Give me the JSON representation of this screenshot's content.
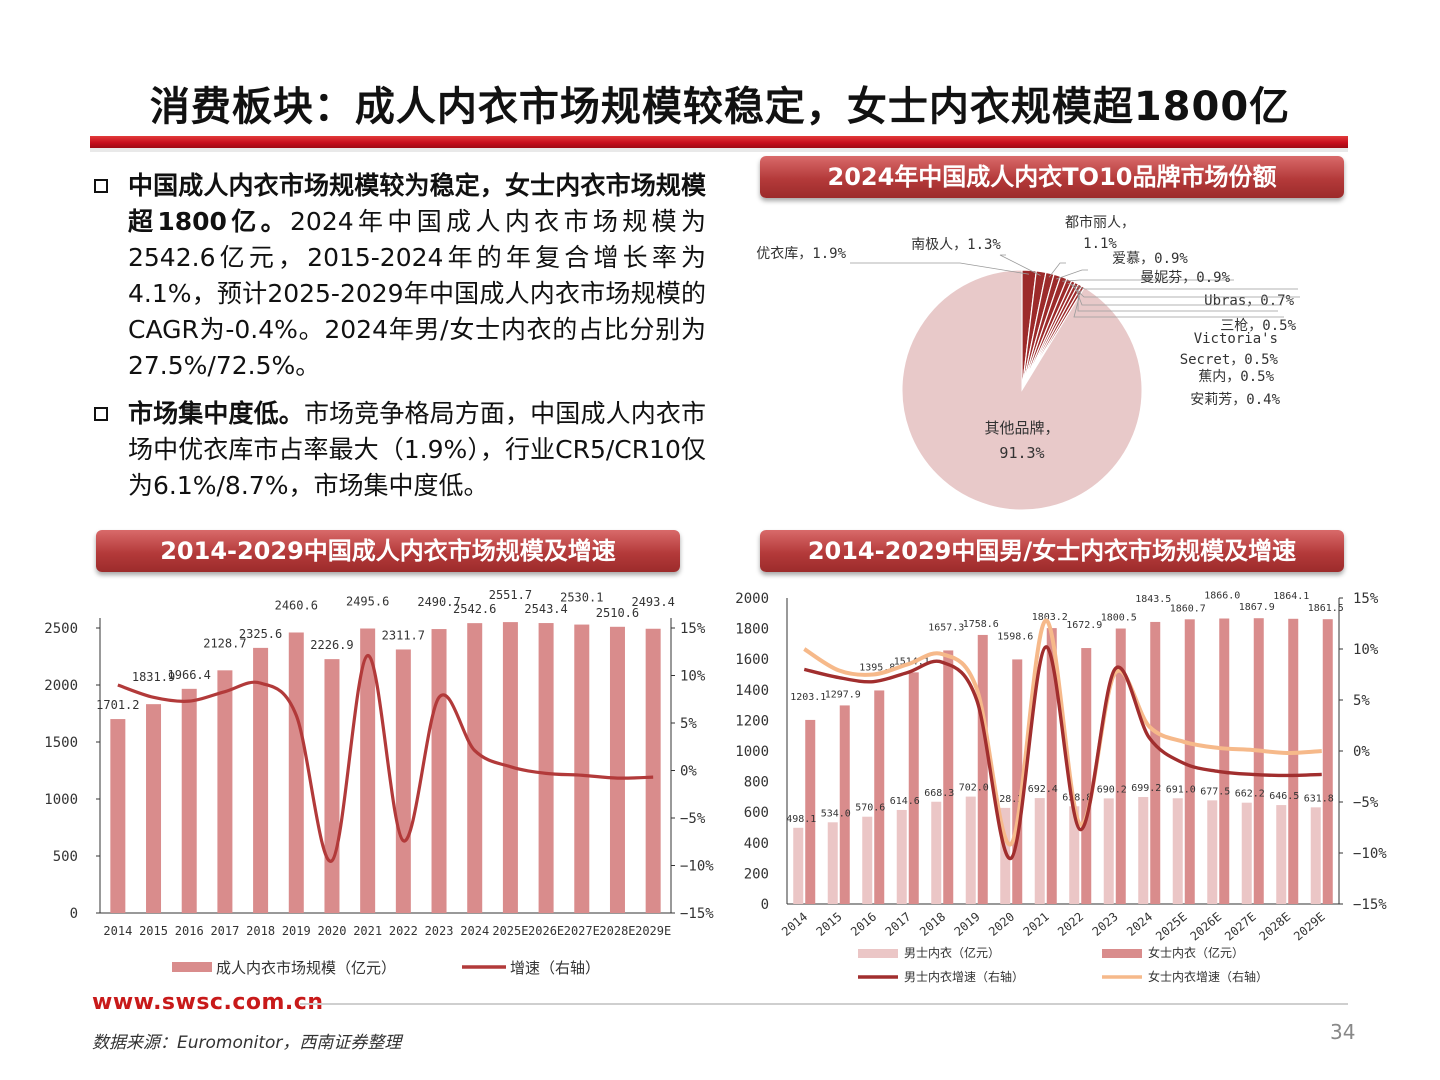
{
  "page": {
    "title": "消费板块：成人内衣市场规模较稳定，女士内衣规模超1800亿",
    "url": "www.swsc.com.cn",
    "source": "数据来源：Euromonitor，西南证券整理",
    "page_number": "34"
  },
  "bullets": [
    {
      "bold": "中国成人内衣市场规模较为稳定，女士内衣市场规模超1800亿。",
      "text": "2024年中国成人内衣市场规模为2542.6亿元，2015-2024年的年复合增长率为4.1%，预计2025-2029年中国成人内衣市场规模的CAGR为-0.4%。2024年男/女士内衣的占比分别为27.5%/72.5%。"
    },
    {
      "bold": "市场集中度低。",
      "text": "市场竞争格局方面，中国成人内衣市场中优衣库市占率最大（1.9%），行业CR5/CR10仅为6.1%/8.7%，市场集中度低。"
    }
  ],
  "colors": {
    "accent": "#c8101e",
    "bar_total": "#d98c8c",
    "line_total": "#b23a3a",
    "bar_male": "#ebc6c6",
    "bar_female": "#d98c8c",
    "line_male": "#a12e2e",
    "line_female": "#f6b98a",
    "pie_other": "#e8c9c9",
    "pie_brand": "#9c2a2a"
  },
  "chart_data": [
    {
      "id": "pie",
      "type": "pie",
      "title": "2024年中国成人内衣TO10品牌市场份额",
      "slices": [
        {
          "name": "优衣库",
          "value": 1.9,
          "label": "优衣库，1.9%"
        },
        {
          "name": "南极人",
          "value": 1.3,
          "label": "南极人，1.3%"
        },
        {
          "name": "都市丽人",
          "value": 1.1,
          "label_lines": [
            "都市丽人，",
            "1.1%"
          ]
        },
        {
          "name": "爱慕",
          "value": 0.9,
          "label": "爱慕，0.9%"
        },
        {
          "name": "曼妮芬",
          "value": 0.9,
          "label": "曼妮芬，0.9%"
        },
        {
          "name": "Ubras",
          "value": 0.7,
          "label": "Ubras，0.7%"
        },
        {
          "name": "三枪",
          "value": 0.5,
          "label": "三枪，0.5%"
        },
        {
          "name": "Victoria's Secret",
          "value": 0.5,
          "label_lines": [
            "Victoria's",
            "Secret，0.5%"
          ]
        },
        {
          "name": "蕉内",
          "value": 0.5,
          "label": "蕉内，0.5%"
        },
        {
          "name": "安莉芳",
          "value": 0.4,
          "label": "安莉芳，0.4%"
        },
        {
          "name": "其他品牌",
          "value": 91.3,
          "label_lines": [
            "其他品牌，",
            "91.3%"
          ]
        }
      ]
    },
    {
      "id": "total",
      "type": "bar",
      "title": "2014-2029中国成人内衣市场规模及增速",
      "categories": [
        "2014",
        "2015",
        "2016",
        "2017",
        "2018",
        "2019",
        "2020",
        "2021",
        "2022",
        "2023",
        "2024",
        "2025E",
        "2026E",
        "2027E",
        "2028E",
        "2029E"
      ],
      "bar_values": [
        1701.2,
        1831.9,
        1966.4,
        2128.7,
        2325.6,
        2460.6,
        2226.9,
        2495.6,
        2311.7,
        2490.7,
        2542.6,
        2551.7,
        2543.4,
        2530.1,
        2510.6,
        2493.4
      ],
      "bar_labels": [
        "1701.2",
        "1831.9",
        "1966.4",
        "2128.7",
        "2325.6",
        "2460.6",
        "2226.9",
        "2495.6",
        "2311.7",
        "2490.7",
        "2542.6",
        "2551.7",
        "2543.4",
        "2530.1",
        "2510.6",
        "2493.4"
      ],
      "growth_values": [
        9.0,
        7.7,
        7.3,
        8.3,
        9.2,
        5.8,
        -9.5,
        12.1,
        -7.4,
        7.7,
        2.1,
        0.4,
        -0.3,
        -0.5,
        -0.8,
        -0.7
      ],
      "y_left": {
        "min": 0,
        "max": 2500,
        "ticks": [
          "0",
          "500",
          "1000",
          "1500",
          "2000",
          "2500"
        ]
      },
      "y_right": {
        "min": -15,
        "max": 15,
        "ticks": [
          "−15%",
          "−10%",
          "−5%",
          "0%",
          "5%",
          "10%",
          "15%"
        ]
      },
      "legend": [
        {
          "label": "成人内衣市场规模（亿元）",
          "kind": "bar"
        },
        {
          "label": "增速（右轴）",
          "kind": "line"
        }
      ]
    },
    {
      "id": "gender",
      "type": "bar",
      "title": "2014-2029中国男/女士内衣市场规模及增速",
      "categories": [
        "2014",
        "2015",
        "2016",
        "2017",
        "2018",
        "2019",
        "2020",
        "2021",
        "2022",
        "2023",
        "2024",
        "2025E",
        "2026E",
        "2027E",
        "2028E",
        "2029E"
      ],
      "series": [
        {
          "name": "男士内衣（亿元）",
          "kind": "bar",
          "values": [
            498.1,
            534.0,
            570.6,
            614.6,
            668.3,
            702.0,
            628.3,
            692.4,
            638.8,
            690.2,
            699.2,
            691.0,
            677.5,
            662.2,
            646.5,
            631.8
          ],
          "labels": [
            "498.1",
            "534.0",
            "570.6",
            "614.6",
            "668.3",
            "702.0",
            "628.3",
            "692.4",
            "638.8",
            "690.2",
            "699.2",
            "691.0",
            "677.5",
            "662.2",
            "646.5",
            "631.8"
          ]
        },
        {
          "name": "女士内衣（亿元）",
          "kind": "bar",
          "values": [
            1203.1,
            1297.9,
            1395.8,
            1514.1,
            1657.3,
            1758.6,
            1598.6,
            1803.2,
            1672.9,
            1800.5,
            1843.5,
            1860.7,
            1866.0,
            1867.9,
            1864.1,
            1861.5
          ],
          "labels": [
            "1203.1",
            "1297.9",
            "1395.8",
            "1514.1",
            "1657.3",
            "1758.6",
            "1598.6",
            "1803.2",
            "1672.9",
            "1800.5",
            "1843.5",
            "1860.7",
            "1866.0",
            "1867.9",
            "1864.1",
            "1861.5"
          ]
        },
        {
          "name": "男士内衣增速（右轴）",
          "kind": "line",
          "values": [
            8.0,
            7.2,
            6.8,
            7.7,
            8.7,
            5.0,
            -10.5,
            10.2,
            -7.7,
            8.0,
            1.3,
            -1.2,
            -2.0,
            -2.3,
            -2.4,
            -2.3
          ]
        },
        {
          "name": "女士内衣增速（右轴）",
          "kind": "line",
          "values": [
            10.0,
            7.9,
            7.5,
            8.5,
            9.5,
            6.1,
            -9.1,
            12.8,
            -7.2,
            7.6,
            2.4,
            0.9,
            0.3,
            0.1,
            -0.2,
            0.0
          ]
        }
      ],
      "y_left": {
        "min": 0,
        "max": 2000,
        "ticks": [
          "0",
          "200",
          "400",
          "600",
          "800",
          "1000",
          "1200",
          "1400",
          "1600",
          "1800",
          "2000"
        ]
      },
      "y_right": {
        "min": -15,
        "max": 15,
        "ticks": [
          "−15%",
          "−10%",
          "−5%",
          "0%",
          "5%",
          "10%",
          "15%"
        ]
      }
    }
  ]
}
